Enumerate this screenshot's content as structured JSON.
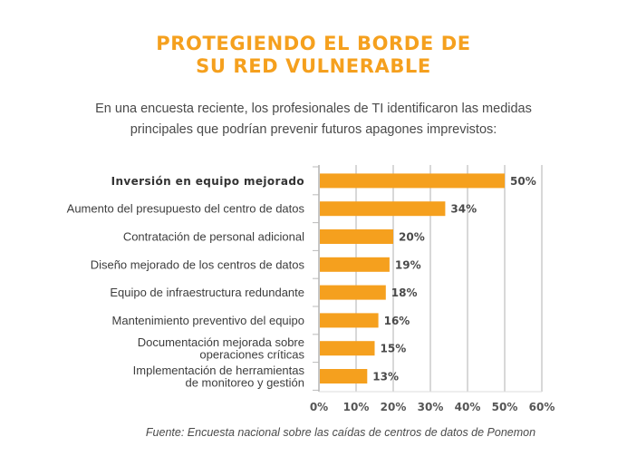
{
  "header": {
    "title_line1": "PROTEGIENDO EL BORDE DE",
    "title_line2": "SU RED VULNERABLE",
    "subtitle_line1": "En una encuesta reciente, los profesionales de TI identificaron las medidas",
    "subtitle_line2": "principales que podrían prevenir futuros apagones imprevistos:"
  },
  "footer": {
    "source": "Fuente: Encuesta nacional sobre las caídas de centros de datos de Ponemon"
  },
  "colors": {
    "bar": "#f5a01e",
    "title": "#f5a01e",
    "grid": "#cccccc",
    "text": "#3d3d3d"
  },
  "chart_data": {
    "type": "bar",
    "orientation": "horizontal",
    "title": "PROTEGIENDO EL BORDE DE SU RED VULNERABLE",
    "xlabel": "",
    "ylabel": "",
    "categories": [
      [
        "Inversión en equipo mejorado"
      ],
      [
        "Aumento del presupuesto del centro de datos"
      ],
      [
        "Contratación de personal adicional"
      ],
      [
        "Diseño mejorado de los centros de datos"
      ],
      [
        "Equipo de infraestructura redundante"
      ],
      [
        "Mantenimiento preventivo del equipo"
      ],
      [
        "Documentación mejorada sobre",
        "operaciones críticas"
      ],
      [
        "Implementación de herramientas",
        "de monitoreo y gestión"
      ]
    ],
    "highlight_index": 0,
    "values": [
      50,
      34,
      20,
      19,
      18,
      16,
      15,
      13
    ],
    "value_labels": [
      "50%",
      "34%",
      "20%",
      "19%",
      "18%",
      "16%",
      "15%",
      "13%"
    ],
    "xlim": [
      0,
      60
    ],
    "xticks": [
      0,
      10,
      20,
      30,
      40,
      50,
      60
    ],
    "xtick_labels": [
      "0%",
      "10%",
      "20%",
      "30%",
      "40%",
      "50%",
      "60%"
    ],
    "grid": true,
    "legend": "none"
  }
}
